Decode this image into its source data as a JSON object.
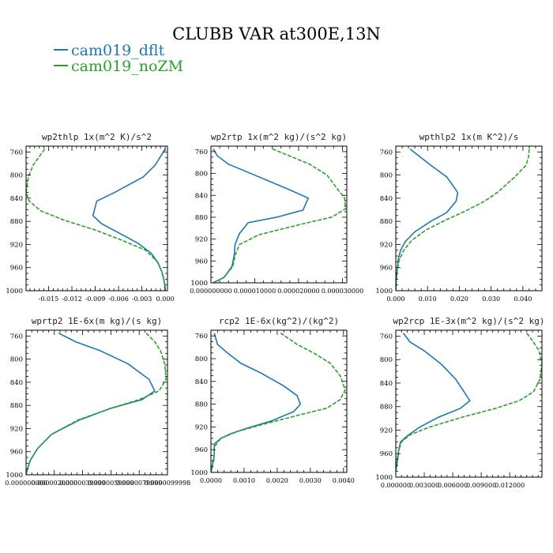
{
  "figure": {
    "title": "CLUBB VAR at300E,13N"
  },
  "legend": [
    {
      "name": "cam019_dflt",
      "color": "#1f77b4",
      "dash": "none"
    },
    {
      "name": "cam019_noZM",
      "color": "#2ca02c",
      "dash": "5,2"
    }
  ],
  "chart_data": [
    {
      "type": "line",
      "title": "wp2thlp  1x(m^2 K)/s^2",
      "ylim": [
        1000,
        750
      ],
      "yticks": [
        760,
        800,
        840,
        880,
        920,
        960,
        1000
      ],
      "xlim": [
        -0.0179,
        0.0003
      ],
      "xticks": [
        -0.015,
        -0.012,
        -0.009,
        -0.006,
        -0.003,
        0.0
      ],
      "xticklabels": [
        "-0.015",
        "-0.012",
        "-0.009",
        "-0.006",
        "-0.003",
        "0.000"
      ],
      "series": [
        {
          "name": "cam019_dflt",
          "x": [
            0.0,
            -0.0006,
            -0.0013,
            -0.0028,
            -0.0065,
            -0.0088,
            -0.0093,
            -0.0082,
            -0.0061,
            -0.0035,
            -0.0018,
            -0.0009,
            -0.0004,
            -0.0001,
            0.0
          ],
          "y": [
            755,
            768,
            783,
            803,
            830,
            845,
            870,
            884,
            899,
            918,
            935,
            952,
            968,
            985,
            1000
          ]
        },
        {
          "name": "cam019_noZM",
          "x": [
            -0.0155,
            -0.0162,
            -0.017,
            -0.0176,
            -0.0179,
            -0.0175,
            -0.016,
            -0.013,
            -0.009,
            -0.0055,
            -0.0025,
            -0.001,
            -0.0004,
            -0.0001,
            0.0
          ],
          "y": [
            755,
            768,
            783,
            803,
            830,
            845,
            862,
            878,
            895,
            913,
            930,
            950,
            968,
            985,
            1000
          ]
        }
      ]
    },
    {
      "type": "line",
      "title": "wp2rtp  1x(m^2 kg)/(s^2 kg)",
      "ylim": [
        1000,
        750
      ],
      "yticks": [
        760,
        800,
        840,
        880,
        920,
        960,
        1000
      ],
      "xlim": [
        0,
        3.1e-05
      ],
      "xticks": [
        0,
        1e-05,
        2e-05,
        3e-05
      ],
      "xticklabels": [
        "0.000000000",
        "0.000010000",
        "0.000020000",
        "0.000030000"
      ],
      "series": [
        {
          "name": "cam019_dflt",
          "x": [
            5e-07,
            1.5e-06,
            4e-06,
            1e-05,
            1.8e-05,
            2.22e-05,
            2.1e-05,
            1.5e-05,
            8.5e-06,
            6.5e-06,
            5.5e-06,
            5.3e-06,
            4.8e-06,
            3e-06,
            5e-07
          ],
          "y": [
            755,
            768,
            783,
            803,
            830,
            845,
            867,
            880,
            890,
            910,
            930,
            950,
            970,
            990,
            1000
          ]
        },
        {
          "name": "cam019_noZM",
          "x": [
            1.4e-05,
            1.8e-05,
            2.25e-05,
            2.65e-05,
            2.9e-05,
            3.05e-05,
            3.07e-05,
            2.75e-05,
            2.05e-05,
            1.1e-05,
            6.5e-06,
            5.5e-06,
            5e-06,
            3e-06,
            5e-07
          ],
          "y": [
            755,
            768,
            783,
            803,
            830,
            845,
            865,
            880,
            893,
            912,
            930,
            950,
            970,
            990,
            1000
          ]
        }
      ]
    },
    {
      "type": "line",
      "title": "wpthlp2  1x(m K^2)/s",
      "ylim": [
        1000,
        750
      ],
      "yticks": [
        760,
        800,
        840,
        880,
        920,
        960,
        1000
      ],
      "xlim": [
        0,
        0.046
      ],
      "xticks": [
        0,
        0.01,
        0.02,
        0.03,
        0.04
      ],
      "xticklabels": [
        "0.000",
        "0.010",
        "0.020",
        "0.030",
        "0.040"
      ],
      "series": [
        {
          "name": "cam019_dflt",
          "x": [
            0.0045,
            0.0075,
            0.011,
            0.016,
            0.0195,
            0.019,
            0.016,
            0.011,
            0.006,
            0.003,
            0.0015,
            0.0008,
            0.0004,
            0.0001,
            0.0
          ],
          "y": [
            755,
            768,
            783,
            803,
            830,
            845,
            865,
            880,
            898,
            915,
            930,
            945,
            965,
            985,
            1000
          ]
        },
        {
          "name": "cam019_noZM",
          "x": [
            0.042,
            0.0418,
            0.041,
            0.0375,
            0.032,
            0.028,
            0.022,
            0.016,
            0.0095,
            0.005,
            0.0025,
            0.001,
            0.0004,
            0.0001,
            0.0
          ],
          "y": [
            755,
            768,
            783,
            803,
            830,
            845,
            862,
            877,
            895,
            913,
            930,
            948,
            968,
            985,
            1000
          ]
        }
      ]
    },
    {
      "type": "line",
      "title": "wprtp2  1E-6x(m kg)/(s kg)",
      "ylim": [
        1000,
        750
      ],
      "yticks": [
        760,
        800,
        840,
        880,
        920,
        960,
        1000
      ],
      "xlim": [
        0,
        1e-05
      ],
      "xticks": [
        0,
        2e-06,
        4e-06,
        6e-06,
        8e-06,
        1e-05
      ],
      "xticklabels": [
        "0.000000000",
        "0.0000020000",
        "0.0000039999",
        "0.0000059999",
        "0.0000079999",
        "0.0000099998"
      ],
      "series": [
        {
          "name": "cam019_dflt",
          "x": [
            2.3e-06,
            3.5e-06,
            5.2e-06,
            7.2e-06,
            8.7e-06,
            9.1e-06,
            8.2e-06,
            6e-06,
            3.8e-06,
            1.8e-06,
            8e-07,
            3e-07,
            1e-07,
            0.0
          ],
          "y": [
            755,
            770,
            785,
            808,
            835,
            855,
            870,
            885,
            905,
            930,
            955,
            975,
            990,
            1000
          ]
        },
        {
          "name": "cam019_noZM",
          "x": [
            8.5e-06,
            9.1e-06,
            9.5e-06,
            9.8e-06,
            9.9e-06,
            9.4e-06,
            8e-06,
            6e-06,
            3.7e-06,
            1.8e-06,
            8e-07,
            3e-07,
            1e-07,
            0.0
          ],
          "y": [
            755,
            770,
            785,
            808,
            835,
            855,
            870,
            885,
            905,
            930,
            955,
            975,
            990,
            1000
          ]
        }
      ]
    },
    {
      "type": "line",
      "title": "rcp2  1E-6x(kg^2)/(kg^2)",
      "ylim": [
        1000,
        750
      ],
      "yticks": [
        760,
        800,
        840,
        880,
        920,
        960,
        1000
      ],
      "xlim": [
        0,
        0.0041
      ],
      "xticks": [
        0,
        0.001,
        0.002,
        0.003,
        0.004
      ],
      "xticklabels": [
        "0.0000",
        "0.0010",
        "0.0020",
        "0.0030",
        "0.0040"
      ],
      "series": [
        {
          "name": "cam019_dflt",
          "x": [
            0.0001,
            0.0002,
            0.0005,
            0.0009,
            0.0015,
            0.0022,
            0.0026,
            0.0027,
            0.0025,
            0.0018,
            0.0011,
            0.0006,
            0.0003,
            0.0001,
            0.0001,
            0.0
          ],
          "y": [
            755,
            775,
            790,
            808,
            825,
            848,
            865,
            880,
            893,
            910,
            922,
            932,
            940,
            950,
            970,
            1000
          ]
        },
        {
          "name": "cam019_noZM",
          "x": [
            0.0021,
            0.0026,
            0.0031,
            0.0036,
            0.0039,
            0.00405,
            0.0039,
            0.0035,
            0.0026,
            0.0016,
            0.0008,
            0.0003,
            0.0001,
            0.0001,
            0.0
          ],
          "y": [
            755,
            775,
            790,
            808,
            830,
            855,
            872,
            887,
            900,
            915,
            928,
            940,
            955,
            975,
            1000
          ]
        }
      ]
    },
    {
      "type": "line",
      "title": "wp2rcp  1E-3x(m^2 kg)/(s^2 kg)",
      "ylim": [
        1000,
        750
      ],
      "yticks": [
        760,
        800,
        840,
        880,
        920,
        960,
        1000
      ],
      "xlim": [
        0,
        0.0154
      ],
      "xticks": [
        0,
        0.003,
        0.006,
        0.009,
        0.012
      ],
      "xticklabels": [
        "0.000000",
        "0.003000",
        "0.006000",
        "0.009000",
        "0.012000"
      ],
      "series": [
        {
          "name": "cam019_dflt",
          "x": [
            0.0008,
            0.0015,
            0.003,
            0.0048,
            0.0063,
            0.0072,
            0.0078,
            0.0068,
            0.0045,
            0.0025,
            0.0012,
            0.0005,
            0.0003,
            0.0002,
            0.0
          ],
          "y": [
            755,
            770,
            785,
            808,
            833,
            855,
            870,
            883,
            898,
            915,
            930,
            940,
            955,
            970,
            990
          ]
        },
        {
          "name": "cam019_noZM",
          "x": [
            0.0138,
            0.0145,
            0.0151,
            0.0154,
            0.0152,
            0.0145,
            0.013,
            0.0105,
            0.007,
            0.0035,
            0.0015,
            0.0006,
            0.0003,
            0.0001,
            0.0
          ],
          "y": [
            755,
            770,
            785,
            808,
            833,
            855,
            870,
            883,
            898,
            915,
            928,
            940,
            955,
            972,
            990
          ]
        }
      ]
    }
  ]
}
